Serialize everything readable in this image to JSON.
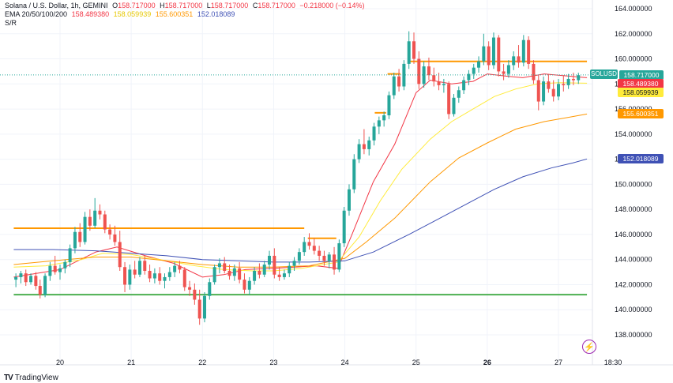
{
  "header": {
    "symbol": "Solana / U.S. Dollar, 1h, GEMINI",
    "ohlc": [
      {
        "label": "O",
        "value": "158.717000"
      },
      {
        "label": "H",
        "value": "158.717000"
      },
      {
        "label": "L",
        "value": "158.717000"
      },
      {
        "label": "C",
        "value": "158.717000"
      }
    ],
    "change": "−0.218000 (−0.14%)",
    "ema_label": "EMA 20/50/100/200",
    "ema_values": [
      "158.489380",
      "158.059939",
      "155.600351",
      "152.018089"
    ],
    "sr_label": "S/R"
  },
  "brand": "TradingView",
  "symbol_tag": "SOLUSD",
  "colors": {
    "up": "#26a69a",
    "down": "#ef5350",
    "ema20": "#f23645",
    "ema50": "#ffeb3b",
    "ema100": "#ff9800",
    "ema200": "#3f51b5",
    "resistance": "#ff9800",
    "support": "#4caf50"
  },
  "chart_data": {
    "type": "candlestick",
    "price_axis_ticks": [
      "164.000000",
      "162.000000",
      "160.000000",
      "158.000000",
      "156.000000",
      "154.000000",
      "152.000000",
      "150.000000",
      "148.000000",
      "146.000000",
      "144.000000",
      "142.000000",
      "140.000000",
      "138.000000"
    ],
    "time_axis_ticks": [
      "20",
      "21",
      "22",
      "23",
      "24",
      "25",
      "26",
      "27",
      "18:30"
    ],
    "price_tags": [
      {
        "label": "158.717000",
        "value": 158.717,
        "color": "#26a69a"
      },
      {
        "label": "158.489380",
        "value": 158.48938,
        "color": "#f23645"
      },
      {
        "label": "158.059939",
        "value": 158.059939,
        "color": "#ffeb3b"
      },
      {
        "label": "155.600351",
        "value": 155.600351,
        "color": "#ff9800"
      },
      {
        "label": "152.018089",
        "value": 152.018089,
        "color": "#3f51b5"
      }
    ],
    "ylim": [
      137.2,
      164.8
    ],
    "series": [
      {
        "name": "EMA 20",
        "color": "#f23645",
        "points": [
          [
            19.35,
            142.6
          ],
          [
            20.0,
            143.2
          ],
          [
            20.5,
            144.6
          ],
          [
            20.8,
            145.0
          ],
          [
            21.2,
            144.3
          ],
          [
            21.6,
            143.7
          ],
          [
            22.0,
            142.6
          ],
          [
            22.3,
            142.8
          ],
          [
            22.6,
            143.2
          ],
          [
            23.0,
            143.3
          ],
          [
            23.3,
            143.4
          ],
          [
            23.6,
            143.5
          ],
          [
            23.9,
            143.3
          ],
          [
            24.1,
            146.0
          ],
          [
            24.4,
            150.2
          ],
          [
            24.7,
            153.2
          ],
          [
            25.0,
            157.3
          ],
          [
            25.2,
            158.3
          ],
          [
            25.5,
            158.0
          ],
          [
            25.8,
            158.2
          ],
          [
            26.0,
            158.8
          ],
          [
            26.3,
            158.6
          ],
          [
            26.5,
            158.5
          ],
          [
            26.8,
            158.8
          ],
          [
            27.0,
            158.7
          ],
          [
            27.4,
            158.5
          ]
        ]
      },
      {
        "name": "EMA 50",
        "color": "#ffeb3b",
        "points": [
          [
            19.35,
            143.4
          ],
          [
            19.8,
            143.5
          ],
          [
            20.3,
            144.0
          ],
          [
            20.6,
            144.5
          ],
          [
            21.0,
            144.4
          ],
          [
            21.5,
            143.9
          ],
          [
            21.9,
            143.5
          ],
          [
            22.3,
            143.2
          ],
          [
            22.7,
            143.1
          ],
          [
            23.0,
            143.1
          ],
          [
            23.4,
            143.3
          ],
          [
            23.9,
            143.8
          ],
          [
            24.2,
            145.8
          ],
          [
            24.5,
            148.7
          ],
          [
            24.8,
            151.2
          ],
          [
            25.2,
            153.6
          ],
          [
            25.5,
            155.0
          ],
          [
            25.8,
            156.0
          ],
          [
            26.1,
            157.0
          ],
          [
            26.4,
            157.6
          ],
          [
            26.7,
            158.0
          ],
          [
            27.0,
            158.1
          ],
          [
            27.4,
            158.06
          ]
        ]
      },
      {
        "name": "EMA 100",
        "color": "#ff9800",
        "points": [
          [
            19.35,
            143.6
          ],
          [
            19.9,
            143.9
          ],
          [
            20.5,
            144.2
          ],
          [
            21.0,
            144.2
          ],
          [
            21.5,
            143.9
          ],
          [
            22.0,
            143.6
          ],
          [
            22.5,
            143.4
          ],
          [
            23.0,
            143.4
          ],
          [
            23.5,
            143.5
          ],
          [
            24.0,
            144.1
          ],
          [
            24.3,
            145.4
          ],
          [
            24.7,
            147.3
          ],
          [
            25.2,
            150.2
          ],
          [
            25.6,
            152.1
          ],
          [
            26.0,
            153.3
          ],
          [
            26.4,
            154.4
          ],
          [
            26.8,
            155.0
          ],
          [
            27.1,
            155.3
          ],
          [
            27.4,
            155.6
          ]
        ]
      },
      {
        "name": "EMA 200",
        "color": "#3f51b5",
        "points": [
          [
            19.35,
            144.8
          ],
          [
            19.9,
            144.8
          ],
          [
            20.5,
            144.7
          ],
          [
            21.0,
            144.5
          ],
          [
            21.5,
            144.3
          ],
          [
            22.0,
            144.0
          ],
          [
            22.5,
            143.9
          ],
          [
            23.0,
            143.8
          ],
          [
            23.5,
            143.8
          ],
          [
            24.0,
            143.9
          ],
          [
            24.4,
            144.6
          ],
          [
            24.9,
            146.0
          ],
          [
            25.3,
            147.2
          ],
          [
            25.7,
            148.4
          ],
          [
            26.1,
            149.6
          ],
          [
            26.5,
            150.6
          ],
          [
            26.9,
            151.3
          ],
          [
            27.2,
            151.7
          ],
          [
            27.4,
            152.02
          ]
        ]
      }
    ],
    "sr_levels": [
      {
        "y": 146.5,
        "x": [
          19.35,
          23.43
        ],
        "color": "#ff9800"
      },
      {
        "y": 145.7,
        "x": [
          23.48,
          23.88
        ],
        "color": "#ff9800"
      },
      {
        "y": 141.2,
        "x": [
          19.35,
          27.4
        ],
        "color": "#4caf50"
      },
      {
        "y": 159.8,
        "x": [
          24.9,
          27.4
        ],
        "color": "#ff9800"
      },
      {
        "y": 158.8,
        "x": [
          24.6,
          24.78
        ],
        "color": "#ff9800"
      },
      {
        "y": 155.7,
        "x": [
          24.42,
          24.58
        ],
        "color": "#ff9800"
      }
    ],
    "candles": [
      [
        19.38,
        142.4,
        142.9,
        141.8,
        142.6
      ],
      [
        19.45,
        142.6,
        143.1,
        142.1,
        142.9
      ],
      [
        19.52,
        142.9,
        143.2,
        141.9,
        142.2
      ],
      [
        19.59,
        142.2,
        142.9,
        142.0,
        142.7
      ],
      [
        19.66,
        142.7,
        143.0,
        141.6,
        141.9
      ],
      [
        19.72,
        141.9,
        142.4,
        140.9,
        141.2
      ],
      [
        19.79,
        141.2,
        142.9,
        141.0,
        142.7
      ],
      [
        19.86,
        142.7,
        143.8,
        142.3,
        143.5
      ],
      [
        19.93,
        143.5,
        144.3,
        142.8,
        143.0
      ],
      [
        20.0,
        143.0,
        143.6,
        142.4,
        143.3
      ],
      [
        20.07,
        143.3,
        144.0,
        142.9,
        143.8
      ],
      [
        20.14,
        143.8,
        145.2,
        143.4,
        144.9
      ],
      [
        20.21,
        144.9,
        146.6,
        144.5,
        146.2
      ],
      [
        20.28,
        146.2,
        146.9,
        145.0,
        145.4
      ],
      [
        20.35,
        145.4,
        147.8,
        145.2,
        147.4
      ],
      [
        20.42,
        147.4,
        148.0,
        146.3,
        146.7
      ],
      [
        20.49,
        146.7,
        148.9,
        146.5,
        147.9
      ],
      [
        20.56,
        147.9,
        148.4,
        147.2,
        147.6
      ],
      [
        20.63,
        147.6,
        147.9,
        146.1,
        146.4
      ],
      [
        20.7,
        146.4,
        146.8,
        145.6,
        146.0
      ],
      [
        20.77,
        146.0,
        146.7,
        145.1,
        145.4
      ],
      [
        20.84,
        145.4,
        146.3,
        143.1,
        143.4
      ],
      [
        20.91,
        143.4,
        143.8,
        141.4,
        142.0
      ],
      [
        20.98,
        142.0,
        143.6,
        141.6,
        143.2
      ],
      [
        21.05,
        143.2,
        143.9,
        142.5,
        142.8
      ],
      [
        21.12,
        142.8,
        144.2,
        142.6,
        143.9
      ],
      [
        21.19,
        143.9,
        144.3,
        142.8,
        143.1
      ],
      [
        21.26,
        143.1,
        143.6,
        142.2,
        142.5
      ],
      [
        21.33,
        142.5,
        143.3,
        142.1,
        142.9
      ],
      [
        21.4,
        142.9,
        143.4,
        142.0,
        142.3
      ],
      [
        21.47,
        142.3,
        142.9,
        141.7,
        142.6
      ],
      [
        21.54,
        142.6,
        143.4,
        142.3,
        143.0
      ],
      [
        21.61,
        143.0,
        143.8,
        142.6,
        143.5
      ],
      [
        21.68,
        143.5,
        143.9,
        142.9,
        143.2
      ],
      [
        21.75,
        143.2,
        143.4,
        141.5,
        141.8
      ],
      [
        21.82,
        141.8,
        142.3,
        141.1,
        141.6
      ],
      [
        21.89,
        141.6,
        142.1,
        140.4,
        140.8
      ],
      [
        21.96,
        140.8,
        141.6,
        138.8,
        139.3
      ],
      [
        22.03,
        139.3,
        141.4,
        139.0,
        141.1
      ],
      [
        22.1,
        141.1,
        142.5,
        140.8,
        142.2
      ],
      [
        22.17,
        142.2,
        143.6,
        142.0,
        143.4
      ],
      [
        22.24,
        143.4,
        144.1,
        142.9,
        143.7
      ],
      [
        22.31,
        143.7,
        144.2,
        142.9,
        143.1
      ],
      [
        22.38,
        143.1,
        143.6,
        142.4,
        142.7
      ],
      [
        22.45,
        142.7,
        143.6,
        142.3,
        143.3
      ],
      [
        22.52,
        143.3,
        143.8,
        142.1,
        142.4
      ],
      [
        22.59,
        142.4,
        142.9,
        141.3,
        141.6
      ],
      [
        22.66,
        141.6,
        142.6,
        141.2,
        142.3
      ],
      [
        22.73,
        142.3,
        143.4,
        142.0,
        143.1
      ],
      [
        22.8,
        143.1,
        143.7,
        142.5,
        142.8
      ],
      [
        22.87,
        142.8,
        143.9,
        142.6,
        143.6
      ],
      [
        22.94,
        143.6,
        144.7,
        143.2,
        144.3
      ],
      [
        23.01,
        144.3,
        144.9,
        142.5,
        142.8
      ],
      [
        23.08,
        142.8,
        143.4,
        142.3,
        142.6
      ],
      [
        23.15,
        142.6,
        143.2,
        142.4,
        142.9
      ],
      [
        23.22,
        142.9,
        143.8,
        142.6,
        143.5
      ],
      [
        23.29,
        143.5,
        144.2,
        143.1,
        143.9
      ],
      [
        23.36,
        143.9,
        144.9,
        143.6,
        144.6
      ],
      [
        23.43,
        144.6,
        145.8,
        144.3,
        145.4
      ],
      [
        23.5,
        145.4,
        146.1,
        144.8,
        145.1
      ],
      [
        23.57,
        145.1,
        145.7,
        144.4,
        144.7
      ],
      [
        23.64,
        144.7,
        145.1,
        143.9,
        144.3
      ],
      [
        23.71,
        144.3,
        144.7,
        143.5,
        143.9
      ],
      [
        23.78,
        143.9,
        144.6,
        143.3,
        144.4
      ],
      [
        23.85,
        144.4,
        145.0,
        142.8,
        143.2
      ],
      [
        23.92,
        143.2,
        145.6,
        143.0,
        145.3
      ],
      [
        23.99,
        145.3,
        148.2,
        145.0,
        147.9
      ],
      [
        24.06,
        147.9,
        150.0,
        147.5,
        149.6
      ],
      [
        24.13,
        149.6,
        152.4,
        149.3,
        152.0
      ],
      [
        24.2,
        152.0,
        153.6,
        151.7,
        153.2
      ],
      [
        24.27,
        153.2,
        154.4,
        152.4,
        152.8
      ],
      [
        24.34,
        152.8,
        153.8,
        152.3,
        153.5
      ],
      [
        24.41,
        153.5,
        154.9,
        153.1,
        154.6
      ],
      [
        24.48,
        154.6,
        155.4,
        154.0,
        155.1
      ],
      [
        24.55,
        155.1,
        155.8,
        154.6,
        155.5
      ],
      [
        24.62,
        155.5,
        157.4,
        155.2,
        157.1
      ],
      [
        24.69,
        157.1,
        158.9,
        156.8,
        158.6
      ],
      [
        24.76,
        158.6,
        159.2,
        157.4,
        157.8
      ],
      [
        24.83,
        157.8,
        159.9,
        157.5,
        159.6
      ],
      [
        24.9,
        159.6,
        162.2,
        159.2,
        161.4
      ],
      [
        24.97,
        161.4,
        162.1,
        159.6,
        160.0
      ],
      [
        25.04,
        160.0,
        160.6,
        157.6,
        158.0
      ],
      [
        25.11,
        158.0,
        159.8,
        157.7,
        159.4
      ],
      [
        25.18,
        159.4,
        160.1,
        158.3,
        158.7
      ],
      [
        25.25,
        158.7,
        159.3,
        157.8,
        158.2
      ],
      [
        25.32,
        158.2,
        158.9,
        157.5,
        157.9
      ],
      [
        25.39,
        157.9,
        158.4,
        157.3,
        158.0
      ],
      [
        25.46,
        158.0,
        158.2,
        155.2,
        155.6
      ],
      [
        25.53,
        155.6,
        157.2,
        155.4,
        156.9
      ],
      [
        25.6,
        156.9,
        157.8,
        156.5,
        157.5
      ],
      [
        25.67,
        157.5,
        158.6,
        157.2,
        158.3
      ],
      [
        25.74,
        158.3,
        159.1,
        157.9,
        158.8
      ],
      [
        25.81,
        158.8,
        159.6,
        158.4,
        159.3
      ],
      [
        25.88,
        159.3,
        160.2,
        158.9,
        159.8
      ],
      [
        25.95,
        159.8,
        162.0,
        159.5,
        161.0
      ],
      [
        26.02,
        161.0,
        161.4,
        159.1,
        159.5
      ],
      [
        26.09,
        159.5,
        162.1,
        159.2,
        161.7
      ],
      [
        26.16,
        161.7,
        161.9,
        158.6,
        159.0
      ],
      [
        26.23,
        159.0,
        159.6,
        158.3,
        158.8
      ],
      [
        26.3,
        158.8,
        159.9,
        158.5,
        159.5
      ],
      [
        26.37,
        159.5,
        160.6,
        159.1,
        160.2
      ],
      [
        26.44,
        160.2,
        161.1,
        159.3,
        159.7
      ],
      [
        26.51,
        159.7,
        161.9,
        159.4,
        161.5
      ],
      [
        26.58,
        161.5,
        161.8,
        159.2,
        159.6
      ],
      [
        26.65,
        159.6,
        159.9,
        158.0,
        158.3
      ],
      [
        26.72,
        158.3,
        158.7,
        155.9,
        156.6
      ],
      [
        26.79,
        156.6,
        158.6,
        156.3,
        158.2
      ],
      [
        26.86,
        158.2,
        158.8,
        157.3,
        157.6
      ],
      [
        26.93,
        157.6,
        158.3,
        156.6,
        157.0
      ],
      [
        27.0,
        157.0,
        158.4,
        156.7,
        158.0
      ],
      [
        27.07,
        158.0,
        158.7,
        157.4,
        157.9
      ],
      [
        27.14,
        157.9,
        158.8,
        157.6,
        158.4
      ],
      [
        27.21,
        158.4,
        158.9,
        157.9,
        158.3
      ],
      [
        27.28,
        158.3,
        158.9,
        158.0,
        158.7
      ]
    ]
  }
}
